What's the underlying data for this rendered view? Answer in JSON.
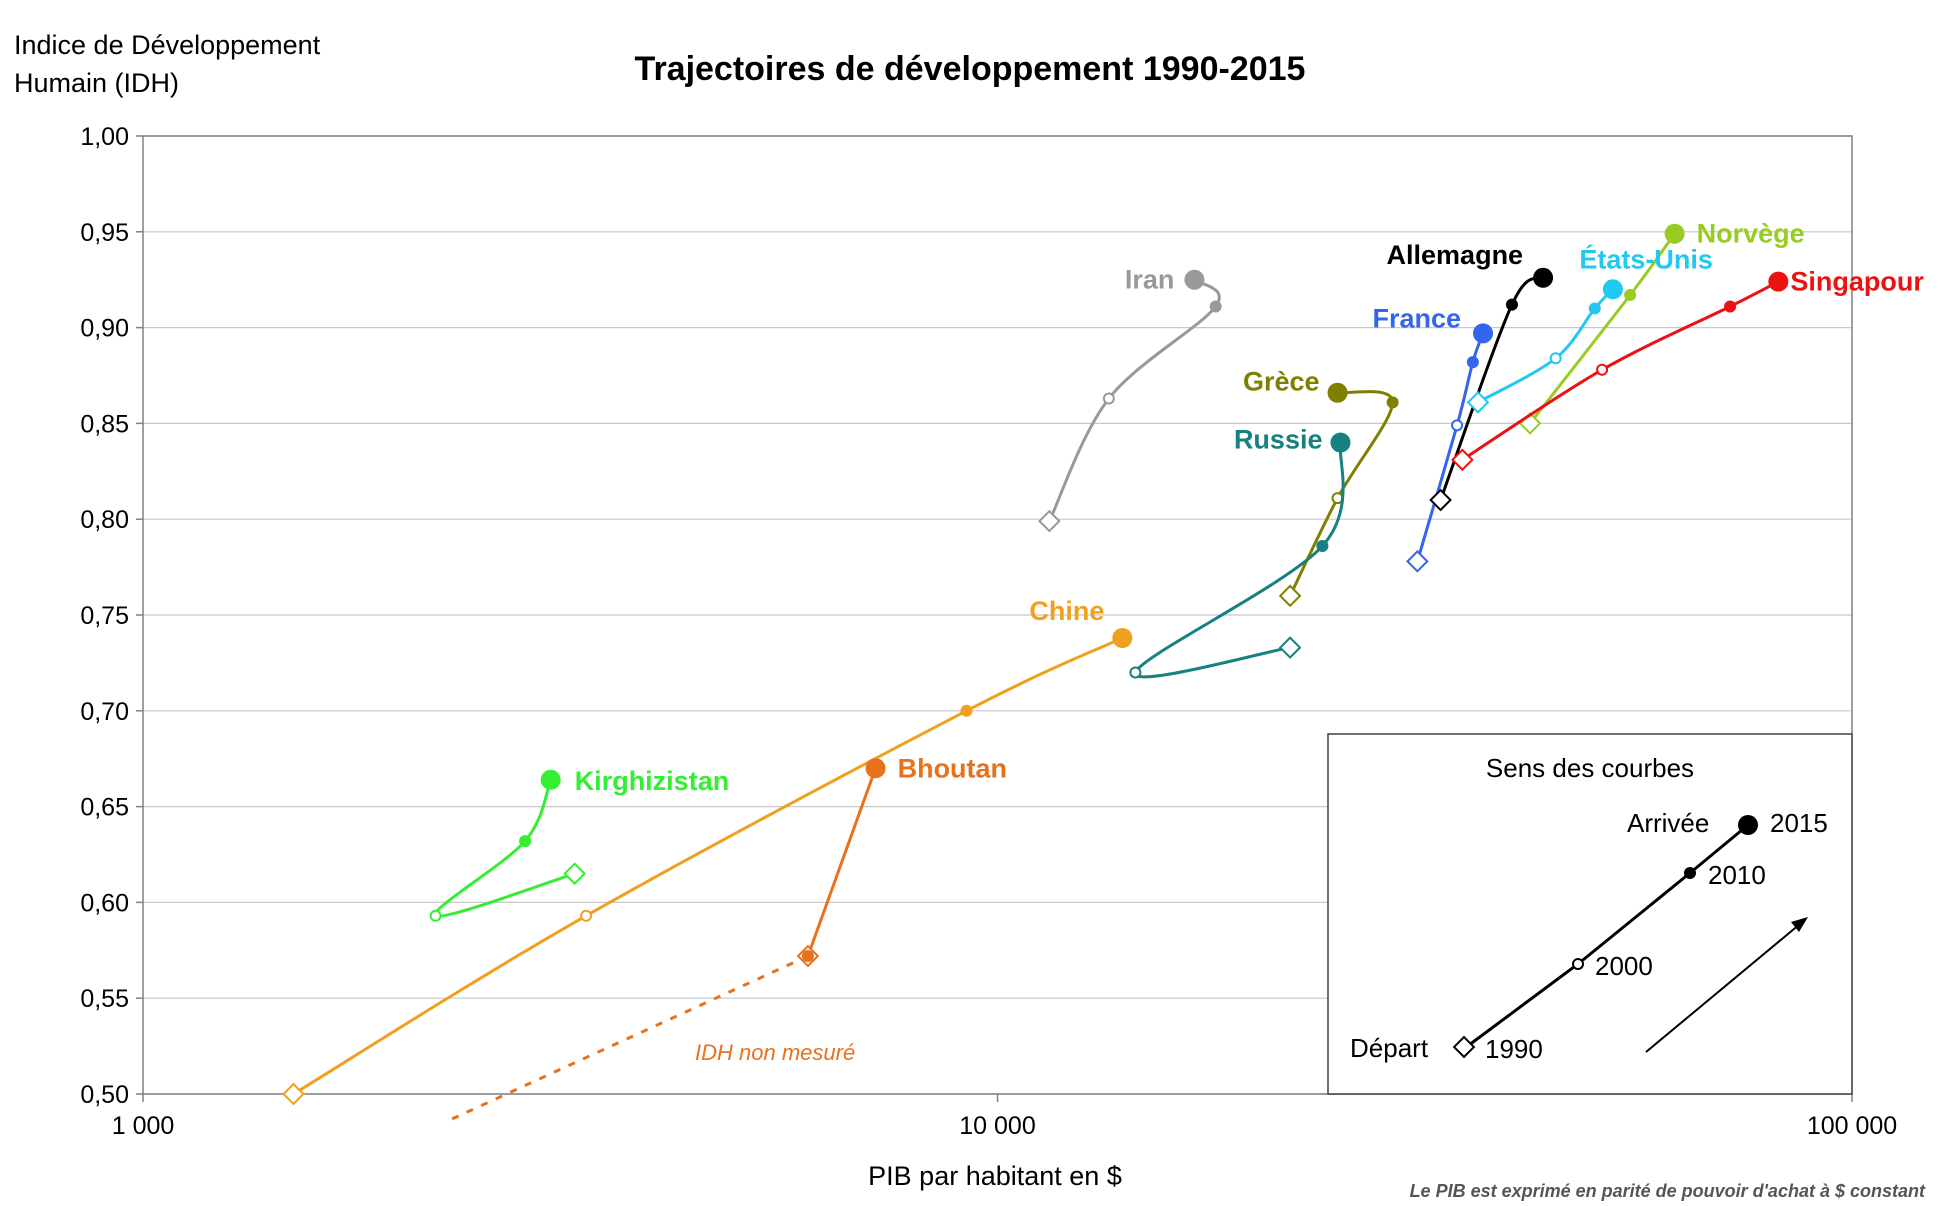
{
  "chart_data": {
    "type": "line",
    "title": "Trajectoires de développement 1990-2015",
    "ylabel_line1": "Indice de Développement",
    "ylabel_line2": "Humain (IDH)",
    "xlabel": "PIB par habitant en $",
    "note": "Le PIB est exprimé en parité de pouvoir d'achat à $ constant",
    "x_scale": "log",
    "xlim": [
      1000,
      100000
    ],
    "ylim": [
      0.5,
      1.0
    ],
    "x_ticks": [
      {
        "value": 1000,
        "label": "1 000"
      },
      {
        "value": 10000,
        "label": "10 000"
      },
      {
        "value": 100000,
        "label": "100 000"
      }
    ],
    "y_ticks": [
      {
        "value": 0.5,
        "label": "0,50"
      },
      {
        "value": 0.55,
        "label": "0,55"
      },
      {
        "value": 0.6,
        "label": "0,60"
      },
      {
        "value": 0.65,
        "label": "0,65"
      },
      {
        "value": 0.7,
        "label": "0,70"
      },
      {
        "value": 0.75,
        "label": "0,75"
      },
      {
        "value": 0.8,
        "label": "0,80"
      },
      {
        "value": 0.85,
        "label": "0,85"
      },
      {
        "value": 0.9,
        "label": "0,90"
      },
      {
        "value": 0.95,
        "label": "0,95"
      },
      {
        "value": 1.0,
        "label": "1,00"
      }
    ],
    "grid": "horizontal",
    "legend_placement": "bottom-right",
    "series": [
      {
        "name": "Iran",
        "color": "#999999",
        "points": [
          [
            11500,
            0.799
          ],
          [
            13500,
            0.863
          ],
          [
            18000,
            0.911
          ],
          [
            17000,
            0.925
          ]
        ]
      },
      {
        "name": "Grèce",
        "color": "#808000",
        "points": [
          [
            22000,
            0.76
          ],
          [
            25000,
            0.811
          ],
          [
            29000,
            0.861
          ],
          [
            25000,
            0.866
          ]
        ]
      },
      {
        "name": "Russie",
        "color": "#178080",
        "points": [
          [
            22000,
            0.733
          ],
          [
            14500,
            0.72
          ],
          [
            24000,
            0.786
          ],
          [
            25200,
            0.84
          ]
        ]
      },
      {
        "name": "Chine",
        "color": "#f0a020",
        "points": [
          [
            1500,
            0.5
          ],
          [
            3300,
            0.593
          ],
          [
            9200,
            0.7
          ],
          [
            14000,
            0.738
          ]
        ]
      },
      {
        "name": "Bhoutan",
        "color": "#e8711c",
        "points": [
          [
            6000,
            0.572
          ],
          [
            7200,
            0.67
          ]
        ],
        "dashed_lead_in": [
          [
            2300,
            0.487
          ],
          [
            6000,
            0.572
          ]
        ]
      },
      {
        "name": "Kirghizistan",
        "color": "#33ee33",
        "points": [
          [
            3200,
            0.615
          ],
          [
            2200,
            0.593
          ],
          [
            2800,
            0.632
          ],
          [
            3000,
            0.664
          ]
        ]
      },
      {
        "name": "France",
        "color": "#3366ee",
        "points": [
          [
            31000,
            0.778
          ],
          [
            34500,
            0.849
          ],
          [
            36000,
            0.882
          ],
          [
            37000,
            0.897
          ]
        ]
      },
      {
        "name": "Allemagne",
        "color": "#000000",
        "points": [
          [
            33000,
            0.81
          ],
          [
            40000,
            0.912
          ],
          [
            43500,
            0.926
          ]
        ]
      },
      {
        "name": "États-Unis",
        "color": "#22c8ee",
        "points": [
          [
            36500,
            0.861
          ],
          [
            45000,
            0.884
          ],
          [
            50000,
            0.91
          ],
          [
            52500,
            0.92
          ]
        ]
      },
      {
        "name": "Norvège",
        "color": "#99cc22",
        "points": [
          [
            42000,
            0.85
          ],
          [
            55000,
            0.917
          ],
          [
            62000,
            0.949
          ]
        ]
      },
      {
        "name": "Singapour",
        "color": "#ee1111",
        "points": [
          [
            35000,
            0.831
          ],
          [
            51000,
            0.878
          ],
          [
            72000,
            0.911
          ],
          [
            82000,
            0.924
          ]
        ]
      }
    ],
    "annotation": "IDH non mesuré",
    "legend": {
      "title": "Sens des courbes",
      "start_label": "Départ",
      "end_label": "Arrivée",
      "years": [
        "1990",
        "2000",
        "2010",
        "2015"
      ]
    }
  }
}
